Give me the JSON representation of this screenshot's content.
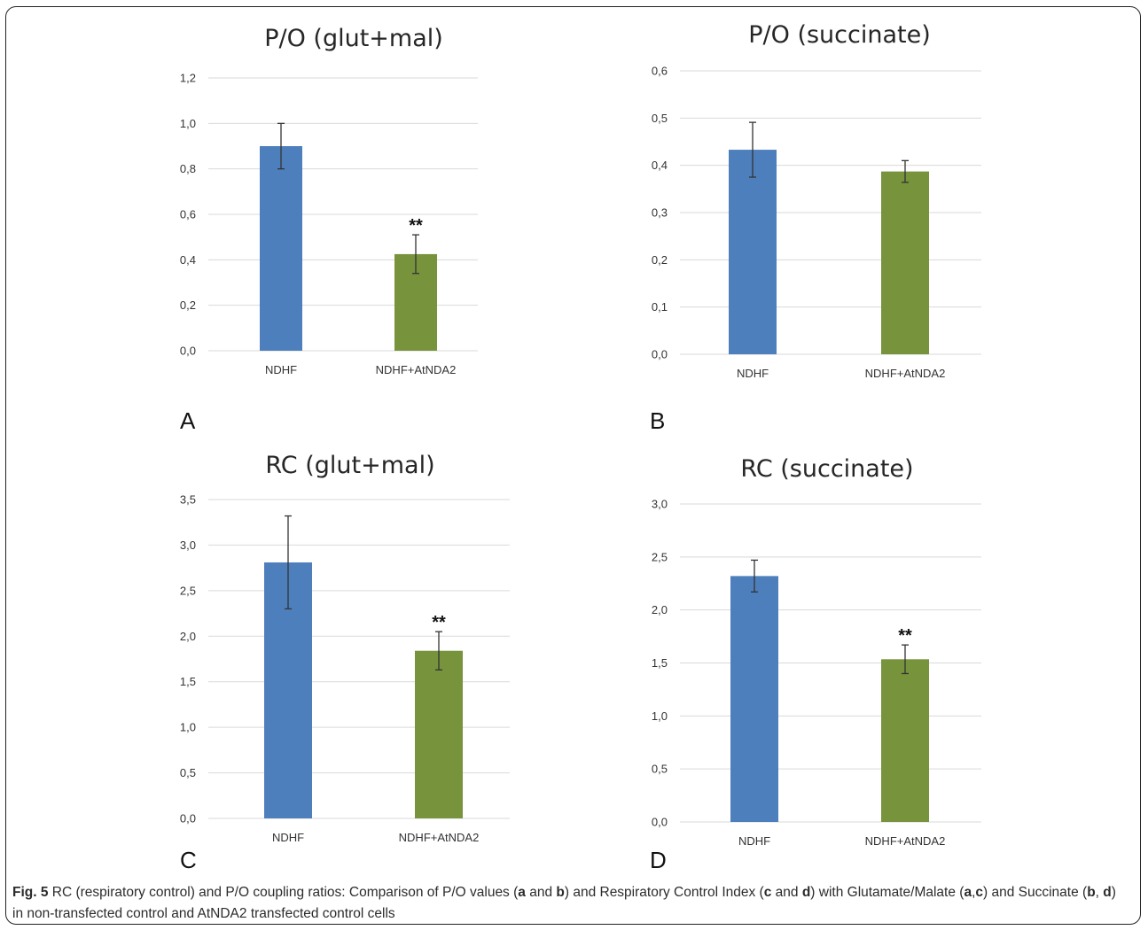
{
  "caption": {
    "fig_label": "Fig. 5",
    "segments": [
      {
        "text": " RC (respiratory control) and P/O coupling ratios: Comparison of P/O values (",
        "bold": false
      },
      {
        "text": "a",
        "bold": true
      },
      {
        "text": " and ",
        "bold": false
      },
      {
        "text": "b",
        "bold": true
      },
      {
        "text": ") and Respiratory Control Index (",
        "bold": false
      },
      {
        "text": "c",
        "bold": true
      },
      {
        "text": " and ",
        "bold": false
      },
      {
        "text": "d",
        "bold": true
      },
      {
        "text": ") with Glutamate/Malate (",
        "bold": false
      },
      {
        "text": "a",
        "bold": true
      },
      {
        "text": ",",
        "bold": false
      },
      {
        "text": "c",
        "bold": true
      },
      {
        "text": ") and Succinate (",
        "bold": false
      },
      {
        "text": "b",
        "bold": true
      },
      {
        "text": ", ",
        "bold": false
      },
      {
        "text": "d",
        "bold": true
      },
      {
        "text": ") in non-transfected control and AtNDA2 transfected control cells",
        "bold": false
      }
    ]
  },
  "colors": {
    "ndhf": "#4e7fbd",
    "atnda2": "#77933c",
    "grid": "#d9d9d9",
    "error": "#333333"
  },
  "chart_data": [
    {
      "panel": "A",
      "type": "bar",
      "title": "P/O (glut+mal)",
      "categories": [
        "NDHF",
        "NDHF+AtNDA2"
      ],
      "values": [
        0.9,
        0.425
      ],
      "errors": [
        0.1,
        0.085
      ],
      "significance": [
        "",
        "**"
      ],
      "ylim": [
        0,
        1.2
      ],
      "yticks": [
        "0,0",
        "0,2",
        "0,4",
        "0,6",
        "0,8",
        "1,0",
        "1,2"
      ],
      "ytick_values": [
        0,
        0.2,
        0.4,
        0.6,
        0.8,
        1.0,
        1.2
      ],
      "grid": true
    },
    {
      "panel": "B",
      "type": "bar",
      "title": "P/O (succinate)",
      "categories": [
        "NDHF",
        "NDHF+AtNDA2"
      ],
      "values": [
        0.433,
        0.387
      ],
      "errors": [
        0.058,
        0.023
      ],
      "significance": [
        "",
        ""
      ],
      "ylim": [
        0,
        0.6
      ],
      "yticks": [
        "0,0",
        "0,1",
        "0,2",
        "0,3",
        "0,4",
        "0,5",
        "0,6"
      ],
      "ytick_values": [
        0,
        0.1,
        0.2,
        0.3,
        0.4,
        0.5,
        0.6
      ],
      "grid": true
    },
    {
      "panel": "C",
      "type": "bar",
      "title": "RC (glut+mal)",
      "categories": [
        "NDHF",
        "NDHF+AtNDA2"
      ],
      "values": [
        2.81,
        1.84
      ],
      "errors": [
        0.51,
        0.21
      ],
      "significance": [
        "",
        "**"
      ],
      "ylim": [
        0,
        3.5
      ],
      "yticks": [
        "0,0",
        "0,5",
        "1,0",
        "1,5",
        "2,0",
        "2,5",
        "3,0",
        "3,5"
      ],
      "ytick_values": [
        0,
        0.5,
        1.0,
        1.5,
        2.0,
        2.5,
        3.0,
        3.5
      ],
      "grid": true
    },
    {
      "panel": "D",
      "type": "bar",
      "title": "RC (succinate)",
      "categories": [
        "NDHF",
        "NDHF+AtNDA2"
      ],
      "values": [
        2.32,
        1.535
      ],
      "errors": [
        0.15,
        0.135
      ],
      "significance": [
        "",
        "**"
      ],
      "ylim": [
        0,
        3.0
      ],
      "yticks": [
        "0,0",
        "0,5",
        "1,0",
        "1,5",
        "2,0",
        "2,5",
        "3,0"
      ],
      "ytick_values": [
        0,
        0.5,
        1.0,
        1.5,
        2.0,
        2.5,
        3.0
      ],
      "grid": true
    }
  ]
}
